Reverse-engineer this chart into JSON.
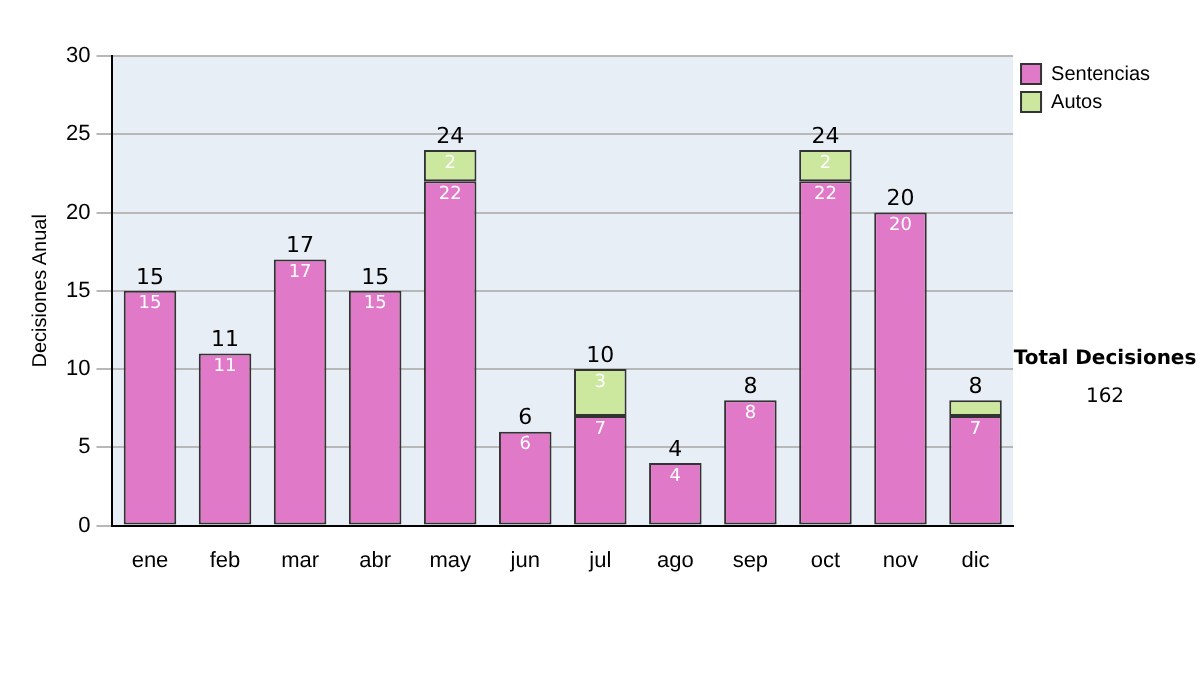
{
  "chart_data": {
    "type": "bar",
    "stacked": true,
    "ylabel": "Decisiones Anual",
    "categories": [
      "ene",
      "feb",
      "mar",
      "abr",
      "may",
      "jun",
      "jul",
      "ago",
      "sep",
      "oct",
      "nov",
      "dic"
    ],
    "series": [
      {
        "name": "Sentencias",
        "color": "#e07ac8",
        "values": [
          15,
          11,
          17,
          15,
          22,
          6,
          7,
          4,
          8,
          22,
          20,
          7
        ],
        "value_labels": [
          "15",
          "11",
          "17",
          "15",
          "22",
          "6",
          "7",
          "4",
          "8",
          "22",
          "20",
          "7"
        ]
      },
      {
        "name": "Autos",
        "color": "#cce89e",
        "values": [
          0,
          0,
          0,
          0,
          2,
          0,
          3,
          0,
          0,
          2,
          0,
          1
        ],
        "value_labels": [
          null,
          null,
          null,
          null,
          "2",
          null,
          "3",
          null,
          null,
          "2",
          null,
          null
        ]
      }
    ],
    "totals": [
      "15",
      "11",
      "17",
      "15",
      "24",
      "6",
      "10",
      "4",
      "8",
      "24",
      "20",
      "8"
    ],
    "ylim": [
      0,
      30
    ],
    "yticks": [
      0,
      5,
      10,
      15,
      20,
      25,
      30
    ],
    "grid": "y",
    "legend": "right",
    "annotations": [
      "Total Decisiones",
      "162"
    ]
  }
}
